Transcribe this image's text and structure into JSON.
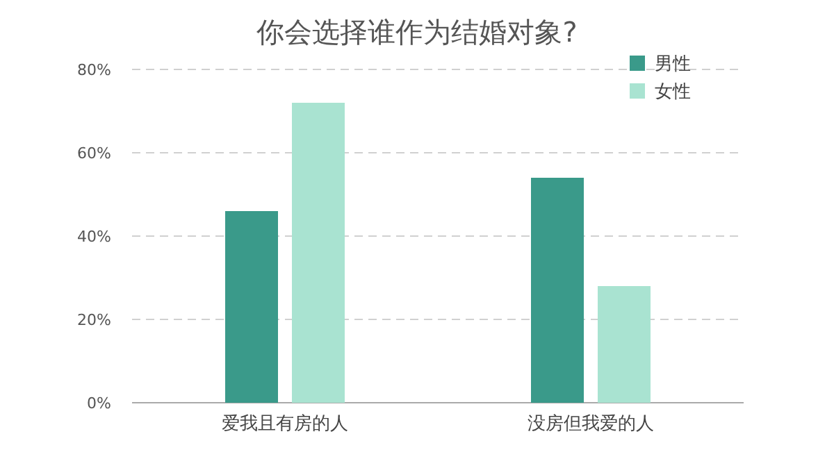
{
  "chart_data": {
    "type": "bar",
    "title": "你会选择谁作为结婚对象?",
    "categories": [
      "爱我且有房的人",
      "没房但我爱的人"
    ],
    "series": [
      {
        "name": "男性",
        "color": "#3a9a8a",
        "values": [
          46,
          54
        ]
      },
      {
        "name": "女性",
        "color": "#a9e3d1",
        "values": [
          72,
          28
        ]
      }
    ],
    "ylim": [
      0,
      80
    ],
    "yticks": [
      {
        "value": 0,
        "label": "0%"
      },
      {
        "value": 20,
        "label": "20%"
      },
      {
        "value": 40,
        "label": "40%"
      },
      {
        "value": 60,
        "label": "60%"
      },
      {
        "value": 80,
        "label": "80%"
      }
    ],
    "grid": "y",
    "legend": "top right"
  }
}
